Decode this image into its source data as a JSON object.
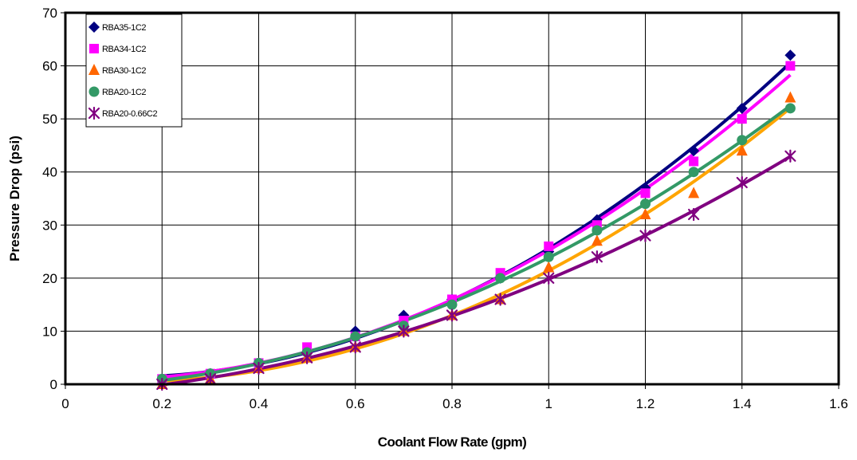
{
  "chart_data": {
    "type": "scatter",
    "title": "",
    "xlabel": "Coolant Flow Rate (gpm)",
    "ylabel": "Pressure Drop (psi)",
    "xlim": [
      0,
      1.6
    ],
    "ylim": [
      0,
      70
    ],
    "xticks": [
      "0",
      "0.2",
      "0.4",
      "0.6",
      "0.8",
      "1",
      "1.2",
      "1.4",
      "1.6"
    ],
    "yticks": [
      "0",
      "10",
      "20",
      "30",
      "40",
      "50",
      "60",
      "70"
    ],
    "grid": true,
    "legend_position": "top-left",
    "trendlines": true,
    "series": [
      {
        "name": "RBA35-1C2",
        "marker": "diamond",
        "color": "#000080",
        "trend_color": "#000080",
        "x": [
          0.2,
          0.3,
          0.4,
          0.5,
          0.6,
          0.7,
          0.8,
          0.9,
          1.0,
          1.1,
          1.2,
          1.3,
          1.4,
          1.5
        ],
        "y": [
          1,
          2,
          4,
          6,
          10,
          13,
          16,
          20,
          25,
          31,
          37,
          44,
          52,
          62
        ]
      },
      {
        "name": "RBA34-1C2",
        "marker": "square",
        "color": "#FF00FF",
        "trend_color": "#FF00FF",
        "x": [
          0.2,
          0.3,
          0.4,
          0.5,
          0.6,
          0.7,
          0.8,
          0.9,
          1.0,
          1.1,
          1.2,
          1.3,
          1.4,
          1.5
        ],
        "y": [
          1,
          2,
          4,
          7,
          9,
          12,
          16,
          21,
          26,
          30,
          36,
          42,
          50,
          60
        ]
      },
      {
        "name": "RBA30-1C2",
        "marker": "triangle",
        "color": "#FF6600",
        "trend_color": "#FFA500",
        "x": [
          0.2,
          0.3,
          0.4,
          0.5,
          0.6,
          0.7,
          0.8,
          0.9,
          1.0,
          1.1,
          1.2,
          1.3,
          1.4,
          1.5
        ],
        "y": [
          0,
          1,
          3,
          5,
          7,
          10,
          13,
          16,
          22,
          27,
          32,
          36,
          44,
          54
        ]
      },
      {
        "name": "RBA20-1C2",
        "marker": "circle",
        "color": "#339966",
        "trend_color": "#339966",
        "x": [
          0.2,
          0.3,
          0.4,
          0.5,
          0.6,
          0.7,
          0.8,
          0.9,
          1.0,
          1.1,
          1.2,
          1.3,
          1.4,
          1.5
        ],
        "y": [
          1,
          2,
          4,
          6,
          9,
          11,
          15,
          20,
          24,
          29,
          34,
          40,
          46,
          52
        ]
      },
      {
        "name": "RBA20-0.66C2",
        "marker": "asterisk",
        "color": "#800080",
        "trend_color": "#800080",
        "x": [
          0.2,
          0.3,
          0.4,
          0.5,
          0.6,
          0.7,
          0.8,
          0.9,
          1.0,
          1.1,
          1.2,
          1.3,
          1.4,
          1.5
        ],
        "y": [
          0,
          1,
          3,
          5,
          7,
          10,
          13,
          16,
          20,
          24,
          28,
          32,
          38,
          43
        ]
      }
    ]
  }
}
